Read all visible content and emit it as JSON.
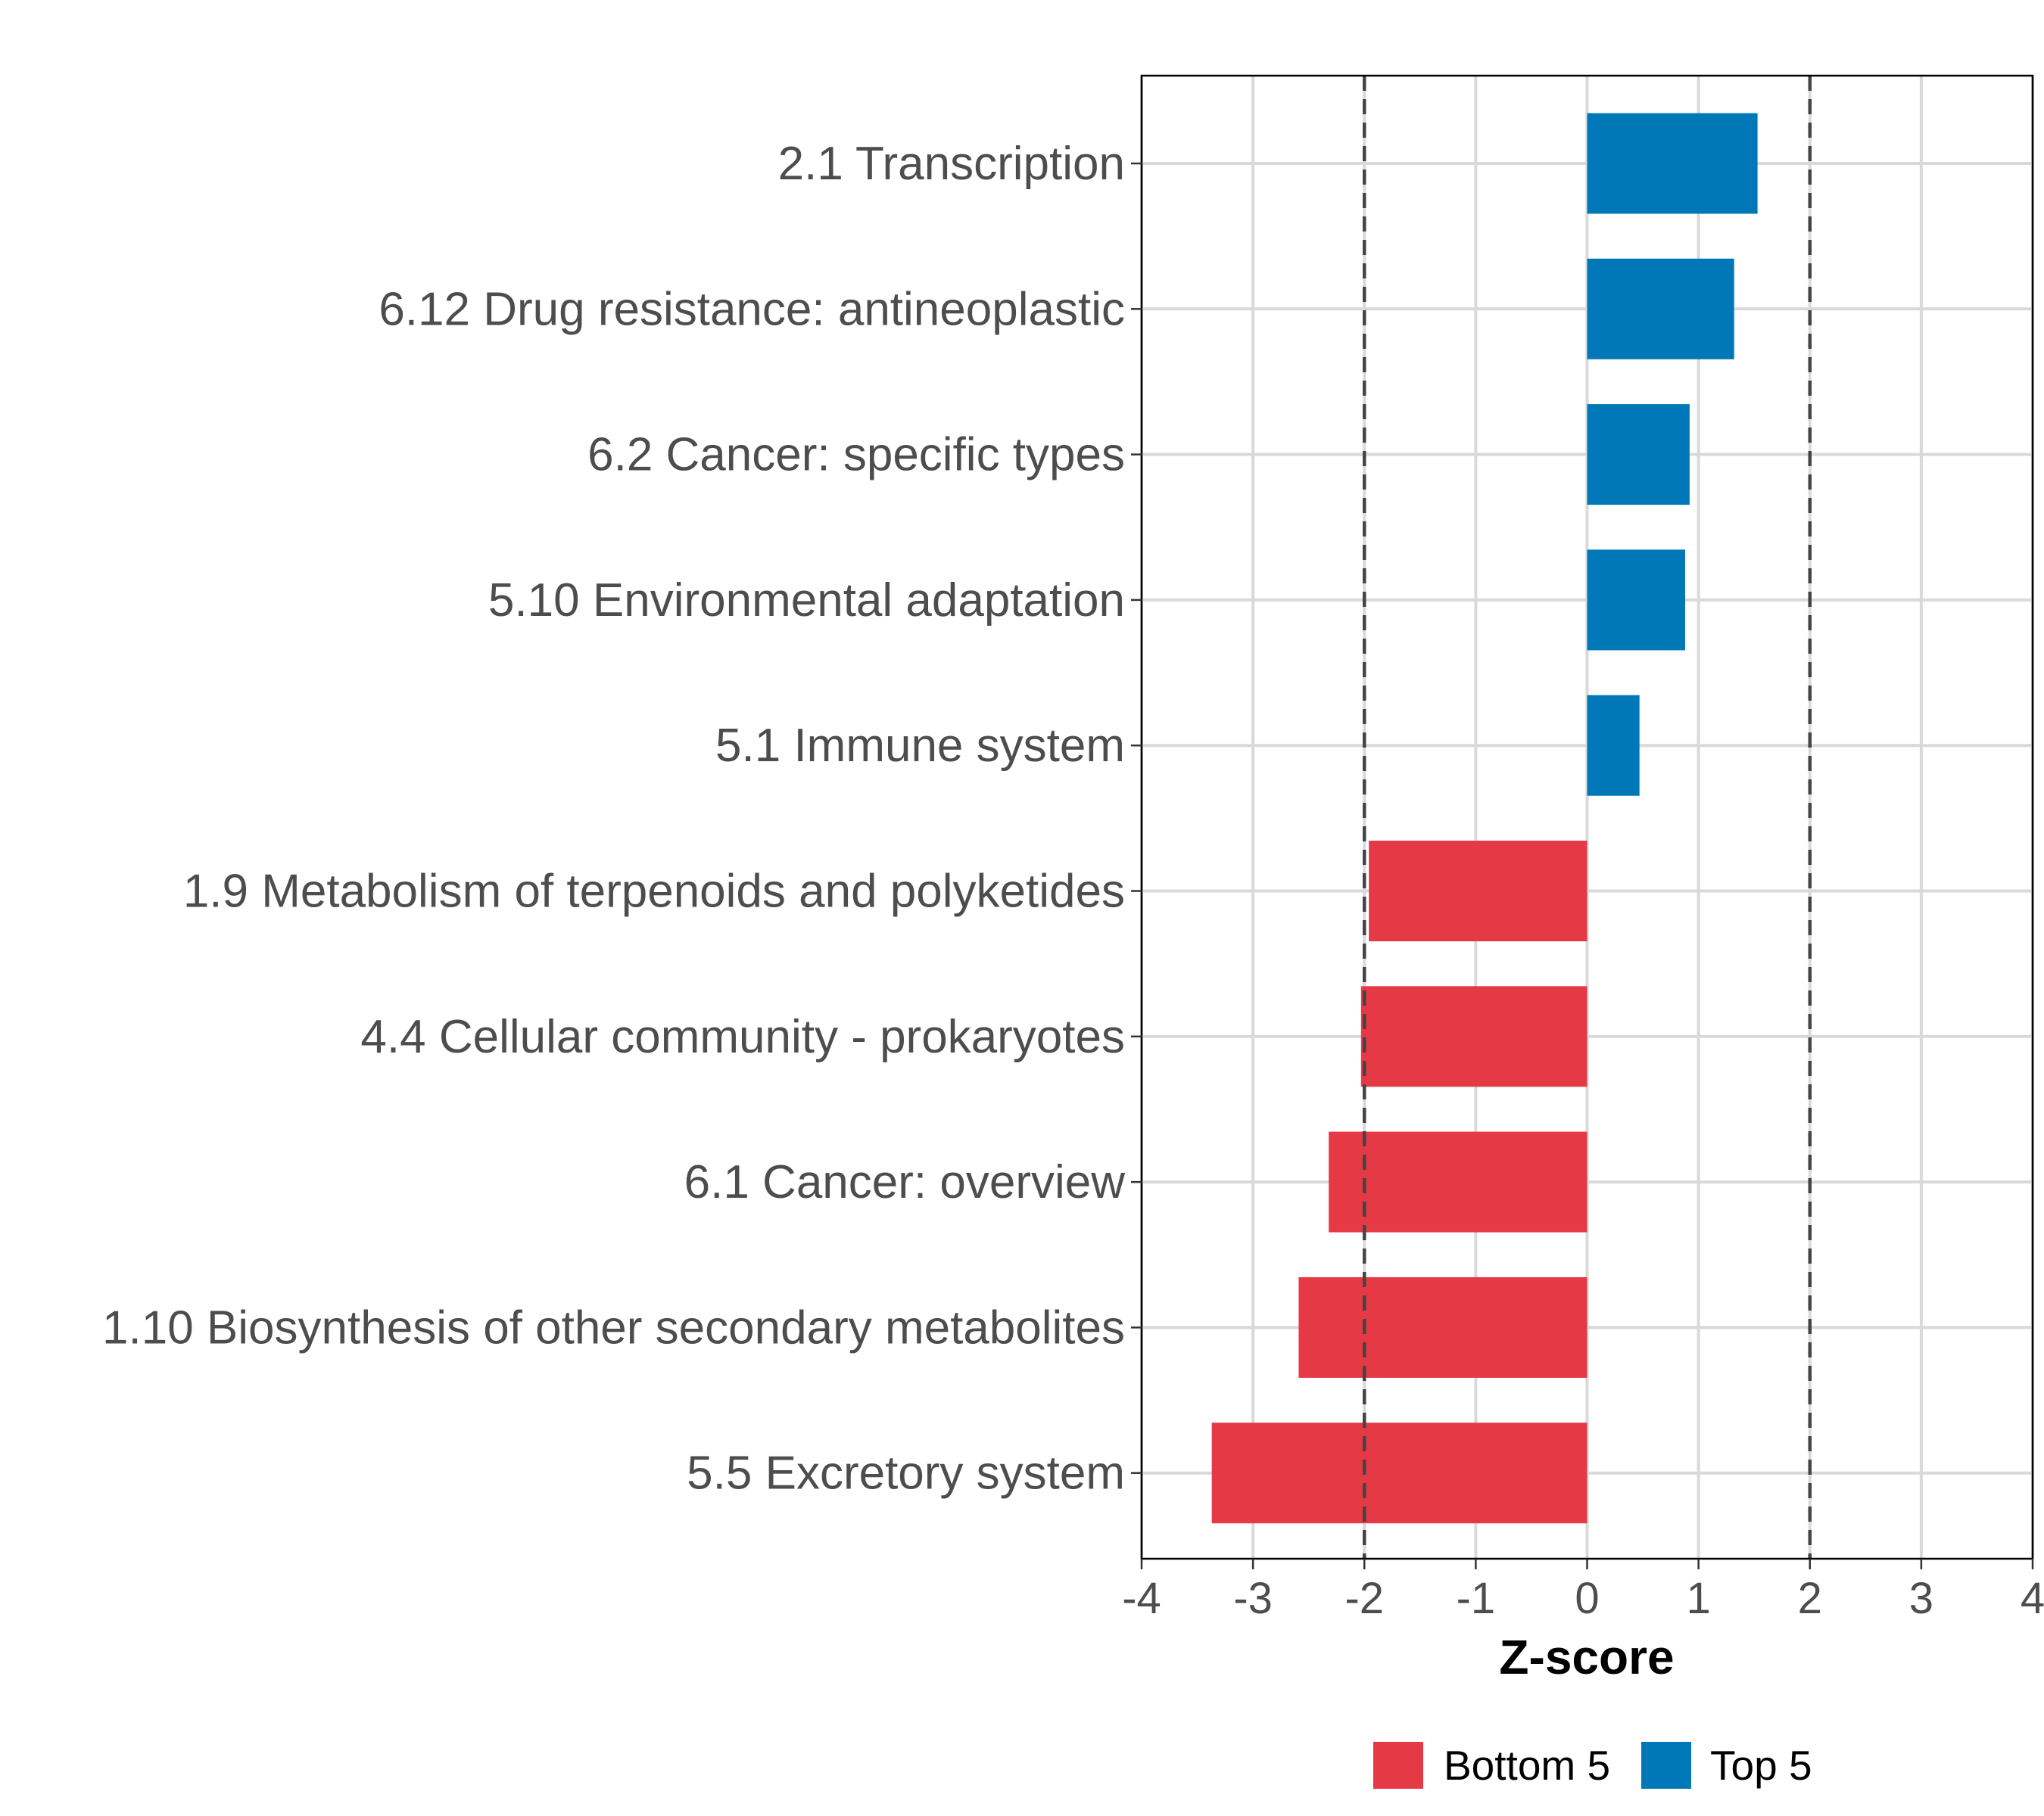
{
  "chart_data": {
    "type": "bar",
    "orientation": "horizontal",
    "title": "",
    "xlabel": "Z-score",
    "ylabel": "",
    "xlim": [
      -4,
      4
    ],
    "xticks": [
      -4,
      -3,
      -2,
      -1,
      0,
      1,
      2,
      3,
      4
    ],
    "grid": true,
    "reference_lines": [
      -2,
      2
    ],
    "categories": [
      "2.1 Transcription",
      "6.12 Drug resistance: antineoplastic",
      "6.2 Cancer: specific types",
      "5.10 Environmental adaptation",
      "5.1 Immune system",
      "1.9 Metabolism of terpenoids and polyketides",
      "4.4 Cellular community - prokaryotes",
      "6.1 Cancer: overview",
      "1.10 Biosynthesis of other secondary metabolites",
      "5.5 Excretory system"
    ],
    "values": [
      1.53,
      1.32,
      0.92,
      0.88,
      0.47,
      -1.96,
      -2.03,
      -2.32,
      -2.59,
      -3.37
    ],
    "groups": [
      "Top 5",
      "Top 5",
      "Top 5",
      "Top 5",
      "Top 5",
      "Bottom 5",
      "Bottom 5",
      "Bottom 5",
      "Bottom 5",
      "Bottom 5"
    ],
    "legend": {
      "position": "bottom",
      "entries": [
        {
          "label": "Bottom 5",
          "color": "#E63946"
        },
        {
          "label": "Top 5",
          "color": "#0077B6"
        }
      ]
    }
  }
}
